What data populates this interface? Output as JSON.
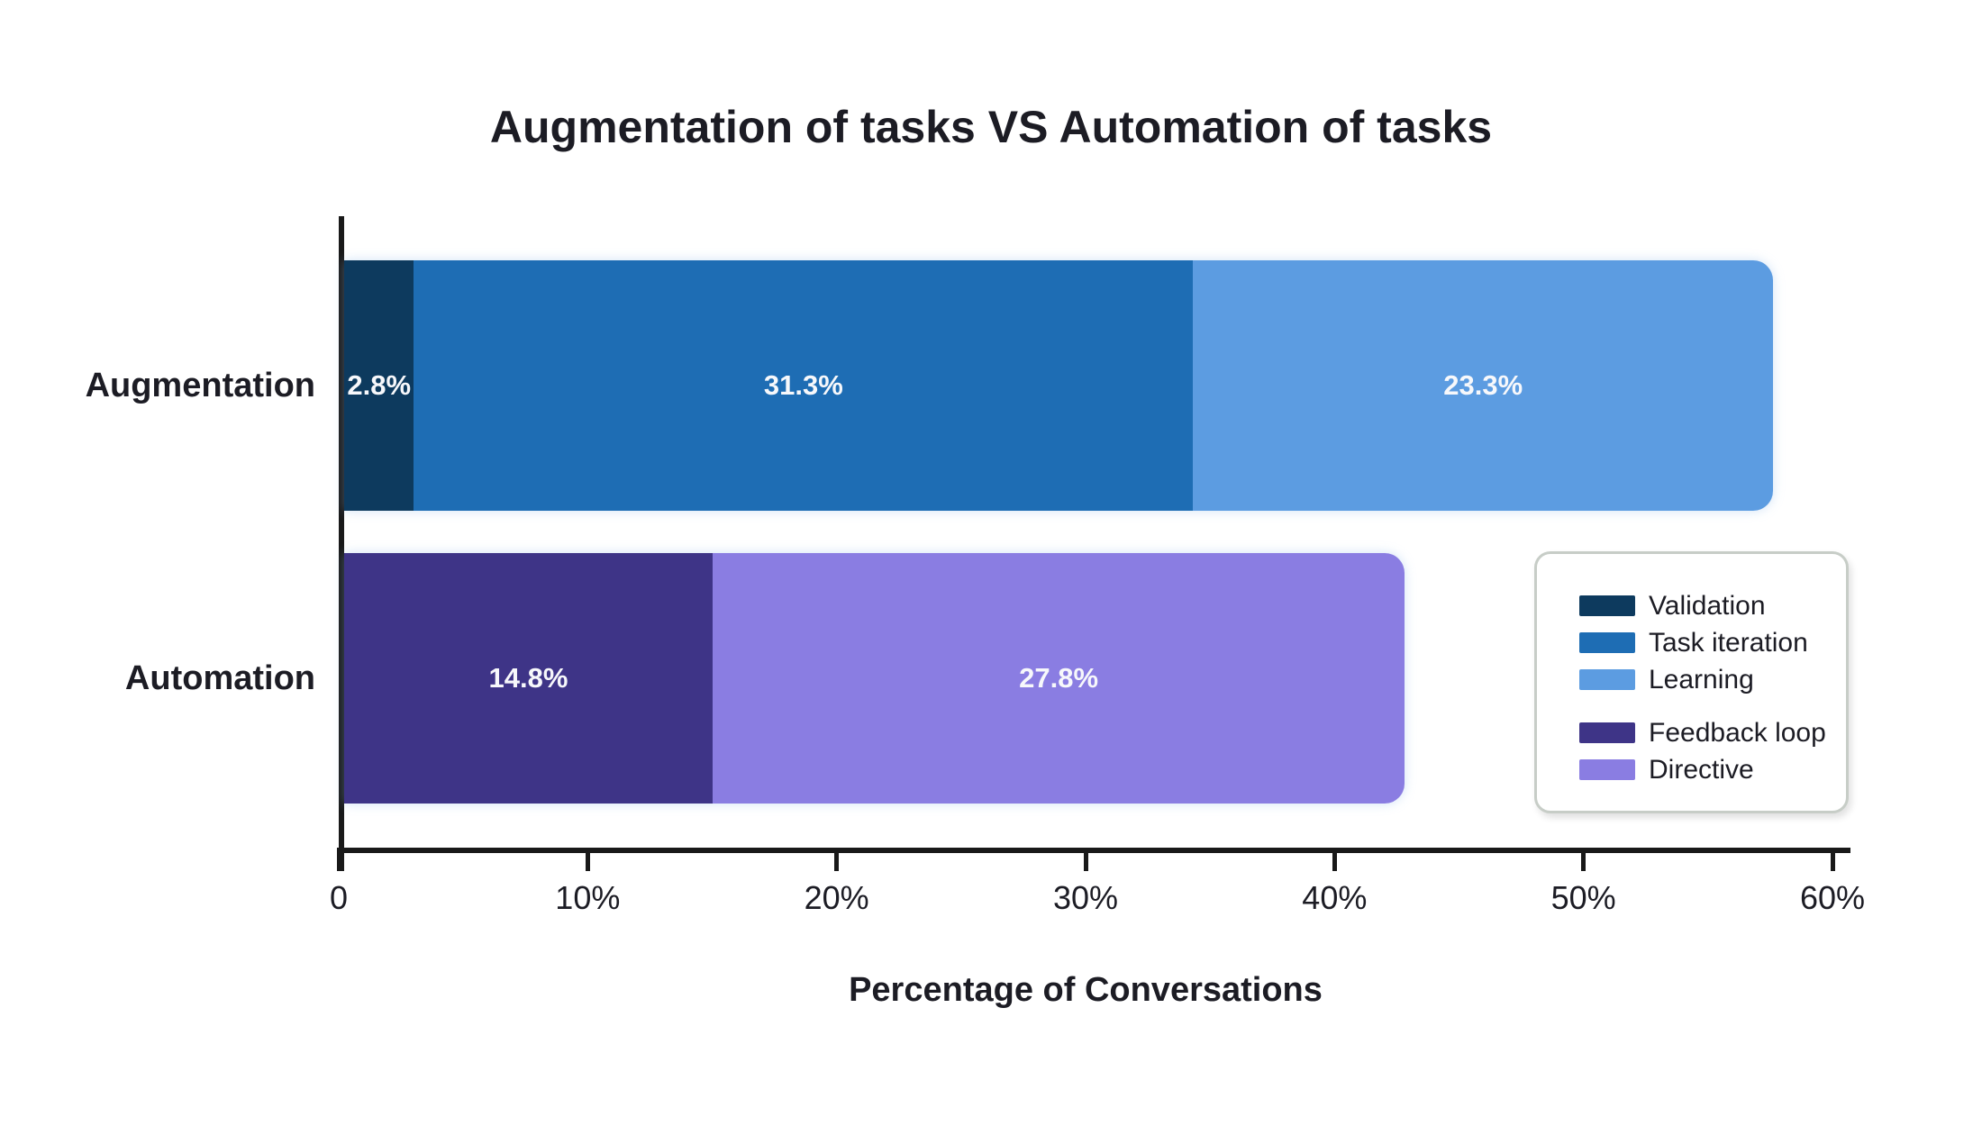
{
  "chart_data": {
    "type": "bar",
    "orientation": "horizontal_stacked",
    "title": "Augmentation of tasks VS Automation of tasks",
    "xlabel": "Percentage of Conversations",
    "xlim": [
      0,
      60
    ],
    "x_ticks": [
      "0",
      "10%",
      "20%",
      "30%",
      "40%",
      "50%",
      "60%"
    ],
    "grid": false,
    "categories": [
      "Augmentation",
      "Automation"
    ],
    "rows": [
      {
        "category": "Augmentation",
        "segments": [
          {
            "name": "Validation",
            "value": 2.8,
            "label": "2.8%",
            "color": "#0d3a5e"
          },
          {
            "name": "Task iteration",
            "value": 31.3,
            "label": "31.3%",
            "color": "#1e6db4"
          },
          {
            "name": "Learning",
            "value": 23.3,
            "label": "23.3%",
            "color": "#5c9ce1"
          }
        ]
      },
      {
        "category": "Automation",
        "segments": [
          {
            "name": "Feedback loop",
            "value": 14.8,
            "label": "14.8%",
            "color": "#3e3487"
          },
          {
            "name": "Directive",
            "value": 27.8,
            "label": "27.8%",
            "color": "#8a7de2"
          }
        ]
      }
    ],
    "legend": {
      "position": "right-middle",
      "groups": [
        [
          {
            "label": "Validation",
            "color": "#0d3a5e"
          },
          {
            "label": "Task iteration",
            "color": "#1e6db4"
          },
          {
            "label": "Learning",
            "color": "#5c9ce1"
          }
        ],
        [
          {
            "label": "Feedback loop",
            "color": "#3e3487"
          },
          {
            "label": "Directive",
            "color": "#8a7de2"
          }
        ]
      ]
    }
  },
  "style": {
    "background": "#ffffff",
    "text_color": "#1c1c24",
    "axis_color": "#191919",
    "bar_value_label_color": "#f7f8fb",
    "legend_border_color": "#c7cdc7"
  }
}
